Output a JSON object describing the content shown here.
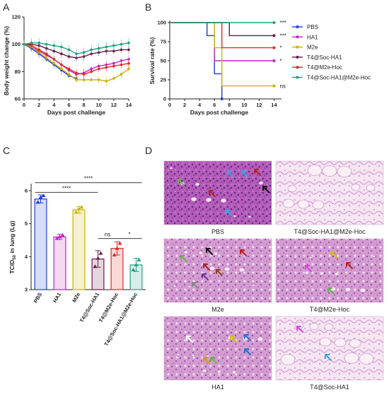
{
  "panels": {
    "A": "A",
    "B": "B",
    "C": "C",
    "D": "D"
  },
  "colors": {
    "PBS": "#1f3fd1",
    "HA1": "#c026c0",
    "M2e": "#c8b400",
    "T4@Soc-HA1": "#6b1a4a",
    "T4@M2e-Hoc": "#e02828",
    "T4@Soc-HA1@M2e-Hoc": "#20a082"
  },
  "chart_data": [
    {
      "type": "line",
      "panel": "A",
      "xlabel": "Days post challenge",
      "ylabel": "Body weight change (%)",
      "xlim": [
        0,
        14
      ],
      "ylim": [
        60,
        120
      ],
      "xticks": [
        "0",
        "2",
        "4",
        "6",
        "8",
        "10",
        "12",
        "14"
      ],
      "yticks": [
        "60",
        "80",
        "100",
        "120"
      ],
      "x": [
        0,
        1,
        2,
        3,
        4,
        5,
        6,
        7,
        8,
        9,
        10,
        11,
        12,
        13,
        14
      ],
      "series": [
        {
          "key": "PBS",
          "values": [
            100,
            97,
            93,
            89,
            85,
            81,
            77,
            75,
            null,
            null,
            null,
            null,
            null,
            null,
            null
          ]
        },
        {
          "key": "HA1",
          "values": [
            100,
            98,
            95,
            92,
            89,
            85,
            81,
            78,
            79,
            82,
            84,
            85,
            86,
            88,
            89
          ]
        },
        {
          "key": "M2e",
          "values": [
            100,
            98,
            94,
            90,
            86,
            82,
            78,
            74,
            74,
            74,
            74,
            73,
            75,
            78,
            82
          ]
        },
        {
          "key": "T4@Soc-HA1",
          "values": [
            100,
            100,
            99,
            97,
            95,
            93,
            91,
            90,
            91,
            93,
            94,
            95,
            95,
            96,
            96
          ]
        },
        {
          "key": "T4@M2e-Hoc",
          "values": [
            100,
            99,
            96,
            93,
            89,
            85,
            82,
            79,
            78,
            80,
            82,
            83,
            84,
            85,
            86
          ]
        },
        {
          "key": "T4@Soc-HA1@M2e-Hoc",
          "values": [
            100,
            101,
            101,
            100,
            99,
            98,
            96,
            93,
            94,
            96,
            97,
            98,
            99,
            100,
            101
          ]
        }
      ]
    },
    {
      "type": "line",
      "panel": "B",
      "xlabel": "Days post challenge",
      "ylabel": "Survival rate (%)",
      "xlim": [
        0,
        15
      ],
      "ylim": [
        0,
        100
      ],
      "xticks": [
        "0",
        "2",
        "4",
        "6",
        "8",
        "10",
        "12",
        "14"
      ],
      "yticks": [
        "0",
        "25",
        "50",
        "75",
        "100"
      ],
      "series": [
        {
          "key": "PBS",
          "name": "PBS",
          "steps": [
            [
              0,
              100
            ],
            [
              5,
              100
            ],
            [
              5,
              83
            ],
            [
              6,
              83
            ],
            [
              6,
              33
            ],
            [
              7,
              33
            ],
            [
              7,
              0
            ]
          ],
          "sig": ""
        },
        {
          "key": "HA1",
          "name": "HA1",
          "steps": [
            [
              0,
              100
            ],
            [
              6,
              100
            ],
            [
              6,
              50
            ],
            [
              14,
              50
            ]
          ],
          "sig": "*"
        },
        {
          "key": "M2e",
          "name": "M2e",
          "steps": [
            [
              0,
              100
            ],
            [
              6,
              100
            ],
            [
              6,
              67
            ],
            [
              7,
              67
            ],
            [
              7,
              17
            ],
            [
              14,
              17
            ]
          ],
          "sig": "ns"
        },
        {
          "key": "T4@Soc-HA1",
          "name": "T4@Soc-HA1",
          "steps": [
            [
              0,
              100
            ],
            [
              8,
              100
            ],
            [
              8,
              83
            ],
            [
              14,
              83
            ]
          ],
          "sig": "***"
        },
        {
          "key": "T4@M2e-Hoc",
          "name": "T4@M2e-Hoc",
          "steps": [
            [
              0,
              100
            ],
            [
              7,
              100
            ],
            [
              7,
              67
            ],
            [
              14,
              67
            ]
          ],
          "sig": "*"
        },
        {
          "key": "T4@Soc-HA1@M2e-Hoc",
          "name": "T4@Soc-HA1@M2e-Hoc",
          "steps": [
            [
              0,
              100
            ],
            [
              14,
              100
            ]
          ],
          "sig": "***"
        }
      ]
    },
    {
      "type": "bar",
      "panel": "C",
      "ylabel": "TCID50 in lung (Lg)",
      "ylim": [
        3,
        6
      ],
      "yticks": [
        "3",
        "4",
        "5",
        "6"
      ],
      "categories": [
        "PBS",
        "HA1",
        "M2e",
        "T4@Soc-HA1",
        "T4@M2e-Hoc",
        "T4@Soc-HA1@M2e-Hoc"
      ],
      "values": [
        5.75,
        4.6,
        5.42,
        3.93,
        4.25,
        3.75
      ],
      "errors": [
        0.12,
        0.08,
        0.1,
        0.25,
        0.2,
        0.2
      ],
      "points": [
        [
          5.65,
          5.8,
          5.85
        ],
        [
          4.55,
          4.6,
          4.65
        ],
        [
          5.35,
          5.45,
          5.5
        ],
        [
          3.7,
          3.95,
          4.1
        ],
        [
          4.05,
          4.25,
          4.4
        ],
        [
          3.6,
          3.75,
          3.9
        ]
      ],
      "significance": [
        {
          "label": "****",
          "from": 0,
          "to": 5,
          "level": 6.2
        },
        {
          "label": "****",
          "from": 0,
          "to": 3,
          "level": 5.95
        },
        {
          "label": "ns",
          "from": 3,
          "to": 4,
          "level": 4.55
        },
        {
          "label": "*",
          "from": 4,
          "to": 5,
          "level": 4.55
        }
      ]
    }
  ],
  "histology": {
    "tiles": [
      {
        "label": "PBS"
      },
      {
        "label": "T4@Soc-HA1@M2e-Hoc"
      },
      {
        "label": "M2e"
      },
      {
        "label": "T4@M2e-Hoc"
      },
      {
        "label": "HA1"
      },
      {
        "label": "T4@Soc-HA1"
      }
    ]
  }
}
